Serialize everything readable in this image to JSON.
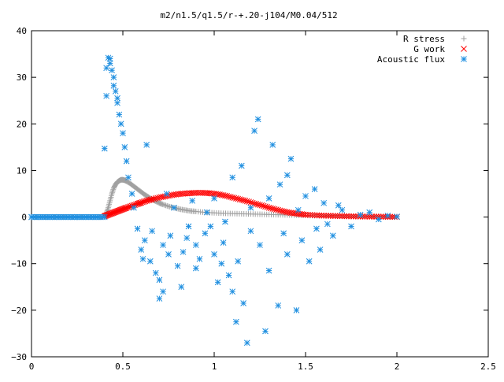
{
  "chart_data": {
    "type": "scatter",
    "title": "m2/n1.5/q1.5/r-+.20-j104/M0.04/512",
    "xlabel": "",
    "ylabel": "",
    "xlim": [
      0,
      2.5
    ],
    "ylim": [
      -30,
      40
    ],
    "xticks": [
      {
        "value": 0,
        "label": "0"
      },
      {
        "value": 0.5,
        "label": "0.5"
      },
      {
        "value": 1,
        "label": "1"
      },
      {
        "value": 1.5,
        "label": "1.5"
      },
      {
        "value": 2,
        "label": "2"
      },
      {
        "value": 2.5,
        "label": "2.5"
      }
    ],
    "yticks": [
      {
        "value": -30,
        "label": "−30"
      },
      {
        "value": -20,
        "label": "−20"
      },
      {
        "value": -10,
        "label": "−10"
      },
      {
        "value": 0,
        "label": "0"
      },
      {
        "value": 10,
        "label": "10"
      },
      {
        "value": 20,
        "label": "20"
      },
      {
        "value": 30,
        "label": "30"
      },
      {
        "value": 40,
        "label": "40"
      }
    ],
    "grid": false,
    "legend_position": "top-right",
    "series": [
      {
        "name": "R stress",
        "marker": "plus",
        "color": "#a0a0a0",
        "x": [
          0.0,
          0.1,
          0.2,
          0.3,
          0.4,
          0.41,
          0.42,
          0.43,
          0.44,
          0.45,
          0.46,
          0.47,
          0.48,
          0.49,
          0.5,
          0.51,
          0.52,
          0.54,
          0.56,
          0.58,
          0.6,
          0.62,
          0.64,
          0.66,
          0.68,
          0.7,
          0.72,
          0.75,
          0.78,
          0.81,
          0.84,
          0.87,
          0.9,
          0.95,
          1.0,
          1.05,
          1.1,
          1.15,
          1.2,
          1.25,
          1.3,
          1.35,
          1.4,
          1.45,
          1.5,
          1.55,
          1.6,
          1.65,
          1.7,
          1.75,
          1.8,
          1.85,
          1.9,
          1.95,
          2.0
        ],
        "y": [
          0,
          0,
          0,
          0,
          0,
          0.8,
          2.0,
          3.5,
          5.0,
          6.2,
          7.0,
          7.5,
          7.8,
          8.0,
          8.0,
          7.9,
          7.7,
          7.2,
          6.6,
          6.0,
          5.4,
          4.8,
          4.3,
          3.8,
          3.4,
          3.0,
          2.7,
          2.3,
          2.0,
          1.7,
          1.5,
          1.3,
          1.2,
          1.0,
          0.9,
          0.8,
          0.75,
          0.7,
          0.65,
          0.6,
          0.55,
          0.5,
          0.45,
          0.4,
          0.35,
          0.3,
          0.28,
          0.25,
          0.22,
          0.2,
          0.18,
          0.15,
          0.12,
          0.1,
          0.05
        ]
      },
      {
        "name": "G work",
        "marker": "cross",
        "color": "#ff0000",
        "x": [
          0.4,
          0.42,
          0.44,
          0.46,
          0.48,
          0.5,
          0.52,
          0.55,
          0.58,
          0.6,
          0.63,
          0.66,
          0.7,
          0.74,
          0.78,
          0.82,
          0.86,
          0.9,
          0.94,
          0.98,
          1.02,
          1.06,
          1.1,
          1.14,
          1.18,
          1.22,
          1.26,
          1.3,
          1.34,
          1.38,
          1.42,
          1.46,
          1.5,
          1.55,
          1.6,
          1.65,
          1.7,
          1.75,
          1.8,
          1.85,
          1.9,
          1.95,
          2.0
        ],
        "y": [
          0.2,
          0.5,
          0.8,
          1.1,
          1.4,
          1.7,
          2.0,
          2.4,
          2.8,
          3.1,
          3.5,
          3.8,
          4.2,
          4.5,
          4.8,
          5.0,
          5.1,
          5.2,
          5.2,
          5.1,
          4.9,
          4.6,
          4.2,
          3.8,
          3.4,
          2.9,
          2.5,
          2.0,
          1.6,
          1.2,
          0.9,
          0.7,
          0.5,
          0.4,
          0.3,
          0.25,
          0.2,
          0.15,
          0.12,
          0.1,
          0.08,
          0.05,
          0.03
        ]
      },
      {
        "name": "Acoustic flux",
        "marker": "star",
        "color": "#1f8fe0",
        "x": [
          0.0,
          0.05,
          0.1,
          0.15,
          0.2,
          0.25,
          0.3,
          0.35,
          0.4,
          0.4,
          0.41,
          0.41,
          0.42,
          0.43,
          0.43,
          0.44,
          0.45,
          0.45,
          0.46,
          0.47,
          0.47,
          0.48,
          0.49,
          0.5,
          0.51,
          0.52,
          0.53,
          0.55,
          0.56,
          0.58,
          0.6,
          0.61,
          0.62,
          0.63,
          0.65,
          0.66,
          0.68,
          0.7,
          0.7,
          0.72,
          0.72,
          0.74,
          0.75,
          0.76,
          0.78,
          0.8,
          0.82,
          0.83,
          0.85,
          0.86,
          0.88,
          0.9,
          0.9,
          0.92,
          0.95,
          0.96,
          0.98,
          1.0,
          1.0,
          1.02,
          1.04,
          1.05,
          1.06,
          1.08,
          1.1,
          1.1,
          1.12,
          1.13,
          1.15,
          1.16,
          1.18,
          1.2,
          1.2,
          1.22,
          1.24,
          1.25,
          1.28,
          1.3,
          1.3,
          1.32,
          1.35,
          1.36,
          1.38,
          1.4,
          1.4,
          1.42,
          1.45,
          1.46,
          1.48,
          1.5,
          1.52,
          1.55,
          1.56,
          1.58,
          1.6,
          1.62,
          1.65,
          1.68,
          1.7,
          1.75,
          1.8,
          1.85,
          1.9,
          1.95,
          2.0
        ],
        "y": [
          0,
          0,
          0,
          0,
          0,
          0,
          0,
          0,
          0,
          14.7,
          26.0,
          32.0,
          34.2,
          34.0,
          33.0,
          31.5,
          30.0,
          28.2,
          27.0,
          25.5,
          24.5,
          22.0,
          20.0,
          18.0,
          15.0,
          12.0,
          8.5,
          5.0,
          2.0,
          -2.5,
          -7.0,
          -9.0,
          -5.0,
          15.5,
          -9.5,
          -3.0,
          -12.0,
          -17.5,
          -13.5,
          -6.0,
          -16.0,
          5.0,
          -8.0,
          -4.0,
          2.0,
          -10.5,
          -15.0,
          -7.5,
          -4.5,
          -2.0,
          3.5,
          -6.0,
          -11.0,
          -9.0,
          -3.5,
          1.0,
          -2.0,
          -8.0,
          4.0,
          -14.0,
          -10.0,
          -5.5,
          -1.0,
          -12.5,
          -16.0,
          8.5,
          -22.5,
          -9.5,
          11.0,
          -18.5,
          -27.0,
          -3.0,
          2.0,
          18.5,
          21.0,
          -6.0,
          -24.5,
          4.0,
          -11.5,
          15.5,
          -19.0,
          7.0,
          -3.5,
          9.0,
          -8.0,
          12.5,
          -20.0,
          1.5,
          -5.0,
          4.5,
          -9.5,
          6.0,
          -2.5,
          -7.0,
          3.0,
          -1.5,
          -4.0,
          2.5,
          1.5,
          -2.0,
          0.5,
          1.0,
          -0.5,
          0.3,
          0.1
        ]
      }
    ]
  }
}
